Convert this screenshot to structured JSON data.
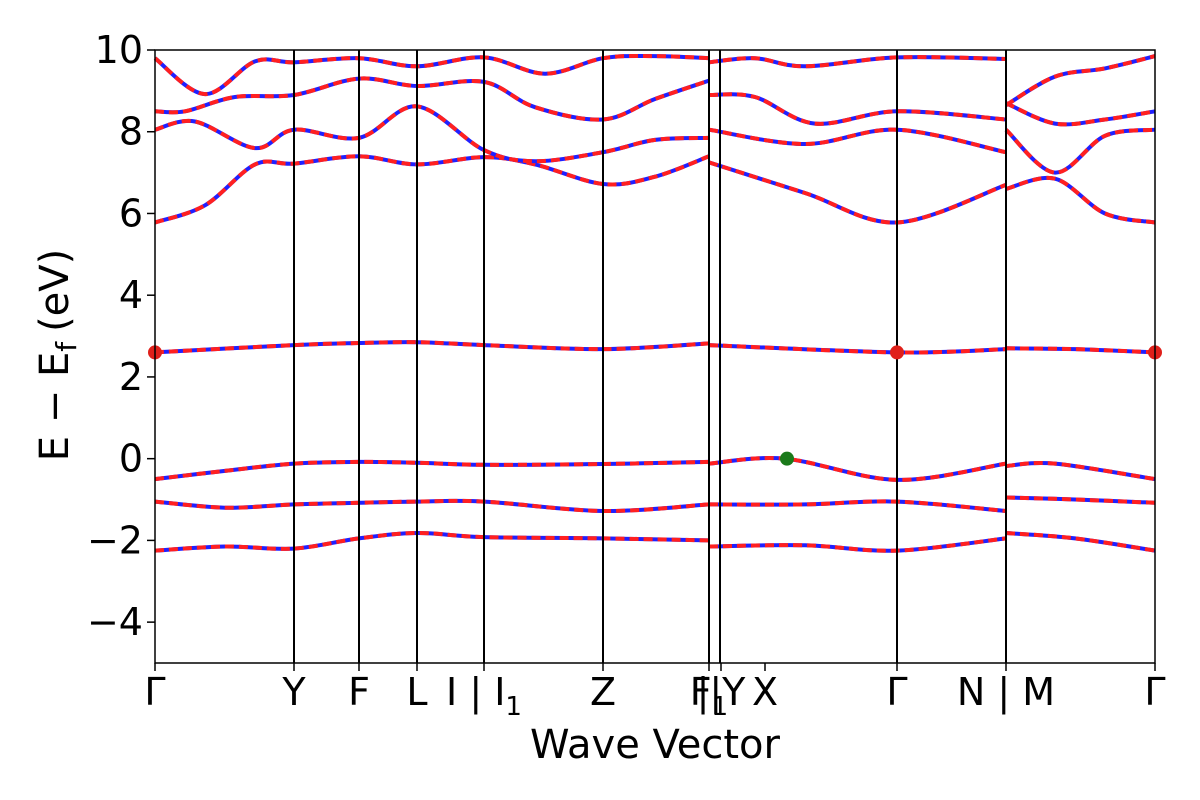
{
  "chart_data": {
    "type": "line",
    "xlabel": "Wave Vector",
    "ylabel": "E − E",
    "ylabel_subscript": "f",
    "ylabel_unit": "(eV)",
    "ylim": [
      -5,
      10
    ],
    "yticks": [
      "−4",
      "−2",
      "0",
      "2",
      "4",
      "6",
      "8",
      "10"
    ],
    "yticks_values": [
      -4,
      -2,
      0,
      2,
      4,
      6,
      8,
      10
    ],
    "xlim": [
      0,
      1
    ],
    "kpoint_labels": [
      {
        "text": "Γ",
        "x": 0.0
      },
      {
        "text": "Y",
        "x": 0.139
      },
      {
        "text": "F",
        "x": 0.204
      },
      {
        "text": "L",
        "x": 0.262
      },
      {
        "text": "I | I",
        "sub": "1",
        "x": 0.329
      },
      {
        "text": "Z",
        "x": 0.448
      },
      {
        "text": "F",
        "sub": "1",
        "x": 0.554
      },
      {
        "text": "||Y",
        "x": 0.566
      },
      {
        "text": "X",
        "x": 0.61
      },
      {
        "text": "Γ",
        "x": 0.742
      },
      {
        "text": "N | M",
        "x": 0.851
      },
      {
        "text": "Γ",
        "x": 1.0
      }
    ],
    "kpoint_lines_x": [
      0.139,
      0.204,
      0.262,
      0.329,
      0.448,
      0.554,
      0.565,
      0.742,
      0.851
    ],
    "grid": false,
    "series_colors": {
      "main": "#ff2020",
      "dash": "#2020ff"
    },
    "segments": [
      {
        "x_range": [
          0.0,
          0.554
        ],
        "bands": [
          [
            [
              0.0,
              -0.5
            ],
            [
              0.07,
              -0.3
            ],
            [
              0.139,
              -0.12
            ],
            [
              0.204,
              -0.08
            ],
            [
              0.262,
              -0.1
            ],
            [
              0.329,
              -0.15
            ],
            [
              0.448,
              -0.13
            ],
            [
              0.554,
              -0.08
            ]
          ],
          [
            [
              0.0,
              -1.05
            ],
            [
              0.07,
              -1.2
            ],
            [
              0.139,
              -1.12
            ],
            [
              0.204,
              -1.08
            ],
            [
              0.262,
              -1.05
            ],
            [
              0.329,
              -1.05
            ],
            [
              0.448,
              -1.28
            ],
            [
              0.554,
              -1.12
            ]
          ],
          [
            [
              0.0,
              -2.25
            ],
            [
              0.07,
              -2.15
            ],
            [
              0.139,
              -2.2
            ],
            [
              0.204,
              -1.95
            ],
            [
              0.262,
              -1.82
            ],
            [
              0.329,
              -1.92
            ],
            [
              0.448,
              -1.95
            ],
            [
              0.554,
              -2.0
            ]
          ],
          [
            [
              0.0,
              2.6
            ],
            [
              0.139,
              2.78
            ],
            [
              0.204,
              2.83
            ],
            [
              0.262,
              2.85
            ],
            [
              0.329,
              2.78
            ],
            [
              0.448,
              2.68
            ],
            [
              0.554,
              2.82
            ]
          ],
          [
            [
              0.0,
              5.78
            ],
            [
              0.05,
              6.2
            ],
            [
              0.1,
              7.2
            ],
            [
              0.139,
              7.22
            ],
            [
              0.204,
              7.4
            ],
            [
              0.262,
              7.2
            ],
            [
              0.329,
              7.38
            ],
            [
              0.38,
              7.2
            ],
            [
              0.448,
              6.72
            ],
            [
              0.5,
              6.9
            ],
            [
              0.554,
              7.4
            ]
          ],
          [
            [
              0.0,
              8.05
            ],
            [
              0.04,
              8.25
            ],
            [
              0.1,
              7.6
            ],
            [
              0.139,
              8.05
            ],
            [
              0.204,
              7.85
            ],
            [
              0.262,
              8.62
            ],
            [
              0.329,
              7.55
            ],
            [
              0.38,
              7.28
            ],
            [
              0.448,
              7.5
            ],
            [
              0.5,
              7.8
            ],
            [
              0.554,
              7.85
            ]
          ],
          [
            [
              0.0,
              8.5
            ],
            [
              0.03,
              8.5
            ],
            [
              0.08,
              8.85
            ],
            [
              0.139,
              8.9
            ],
            [
              0.204,
              9.3
            ],
            [
              0.262,
              9.12
            ],
            [
              0.329,
              9.22
            ],
            [
              0.38,
              8.6
            ],
            [
              0.448,
              8.3
            ],
            [
              0.5,
              8.8
            ],
            [
              0.554,
              9.25
            ]
          ],
          [
            [
              0.0,
              9.8
            ],
            [
              0.05,
              8.92
            ],
            [
              0.1,
              9.72
            ],
            [
              0.139,
              9.7
            ],
            [
              0.204,
              9.8
            ],
            [
              0.262,
              9.6
            ],
            [
              0.329,
              9.82
            ],
            [
              0.39,
              9.42
            ],
            [
              0.448,
              9.8
            ],
            [
              0.5,
              9.85
            ],
            [
              0.554,
              9.8
            ]
          ]
        ]
      },
      {
        "x_range": [
          0.554,
          0.851
        ],
        "bands": [
          [
            [
              0.554,
              -0.12
            ],
            [
              0.63,
              0.0
            ],
            [
              0.742,
              -0.52
            ],
            [
              0.851,
              -0.12
            ]
          ],
          [
            [
              0.554,
              -1.12
            ],
            [
              0.65,
              -1.12
            ],
            [
              0.742,
              -1.05
            ],
            [
              0.851,
              -1.28
            ]
          ],
          [
            [
              0.554,
              -2.15
            ],
            [
              0.65,
              -2.12
            ],
            [
              0.742,
              -2.25
            ],
            [
              0.851,
              -1.95
            ]
          ],
          [
            [
              0.554,
              2.78
            ],
            [
              0.742,
              2.6
            ],
            [
              0.851,
              2.68
            ]
          ],
          [
            [
              0.554,
              7.25
            ],
            [
              0.65,
              6.5
            ],
            [
              0.742,
              5.78
            ],
            [
              0.851,
              6.7
            ]
          ],
          [
            [
              0.554,
              8.05
            ],
            [
              0.65,
              7.7
            ],
            [
              0.742,
              8.05
            ],
            [
              0.851,
              7.5
            ]
          ],
          [
            [
              0.554,
              8.9
            ],
            [
              0.6,
              8.85
            ],
            [
              0.66,
              8.2
            ],
            [
              0.742,
              8.5
            ],
            [
              0.851,
              8.3
            ]
          ],
          [
            [
              0.554,
              9.7
            ],
            [
              0.6,
              9.8
            ],
            [
              0.65,
              9.6
            ],
            [
              0.742,
              9.82
            ],
            [
              0.851,
              9.78
            ]
          ]
        ]
      },
      {
        "x_range": [
          0.851,
          1.0
        ],
        "bands": [
          [
            [
              0.851,
              -0.18
            ],
            [
              0.9,
              -0.12
            ],
            [
              1.0,
              -0.5
            ]
          ],
          [
            [
              0.851,
              -0.95
            ],
            [
              0.92,
              -1.0
            ],
            [
              1.0,
              -1.08
            ]
          ],
          [
            [
              0.851,
              -1.82
            ],
            [
              0.92,
              -1.95
            ],
            [
              1.0,
              -2.25
            ]
          ],
          [
            [
              0.851,
              2.7
            ],
            [
              0.92,
              2.68
            ],
            [
              1.0,
              2.6
            ]
          ],
          [
            [
              0.851,
              6.6
            ],
            [
              0.9,
              6.85
            ],
            [
              0.95,
              6.0
            ],
            [
              1.0,
              5.78
            ]
          ],
          [
            [
              0.851,
              8.05
            ],
            [
              0.9,
              7.0
            ],
            [
              0.95,
              7.9
            ],
            [
              1.0,
              8.05
            ]
          ],
          [
            [
              0.851,
              8.7
            ],
            [
              0.9,
              8.2
            ],
            [
              0.95,
              8.3
            ],
            [
              1.0,
              8.5
            ]
          ],
          [
            [
              0.851,
              8.65
            ],
            [
              0.9,
              9.35
            ],
            [
              0.95,
              9.55
            ],
            [
              1.0,
              9.85
            ]
          ]
        ]
      }
    ],
    "markers": [
      {
        "x": 0.0,
        "y": 2.6,
        "color": "#e0201a"
      },
      {
        "x": 0.742,
        "y": 2.6,
        "color": "#e0201a"
      },
      {
        "x": 1.0,
        "y": 2.6,
        "color": "#e0201a"
      },
      {
        "x": 0.632,
        "y": 0.0,
        "color": "#1a7a1a"
      }
    ]
  }
}
